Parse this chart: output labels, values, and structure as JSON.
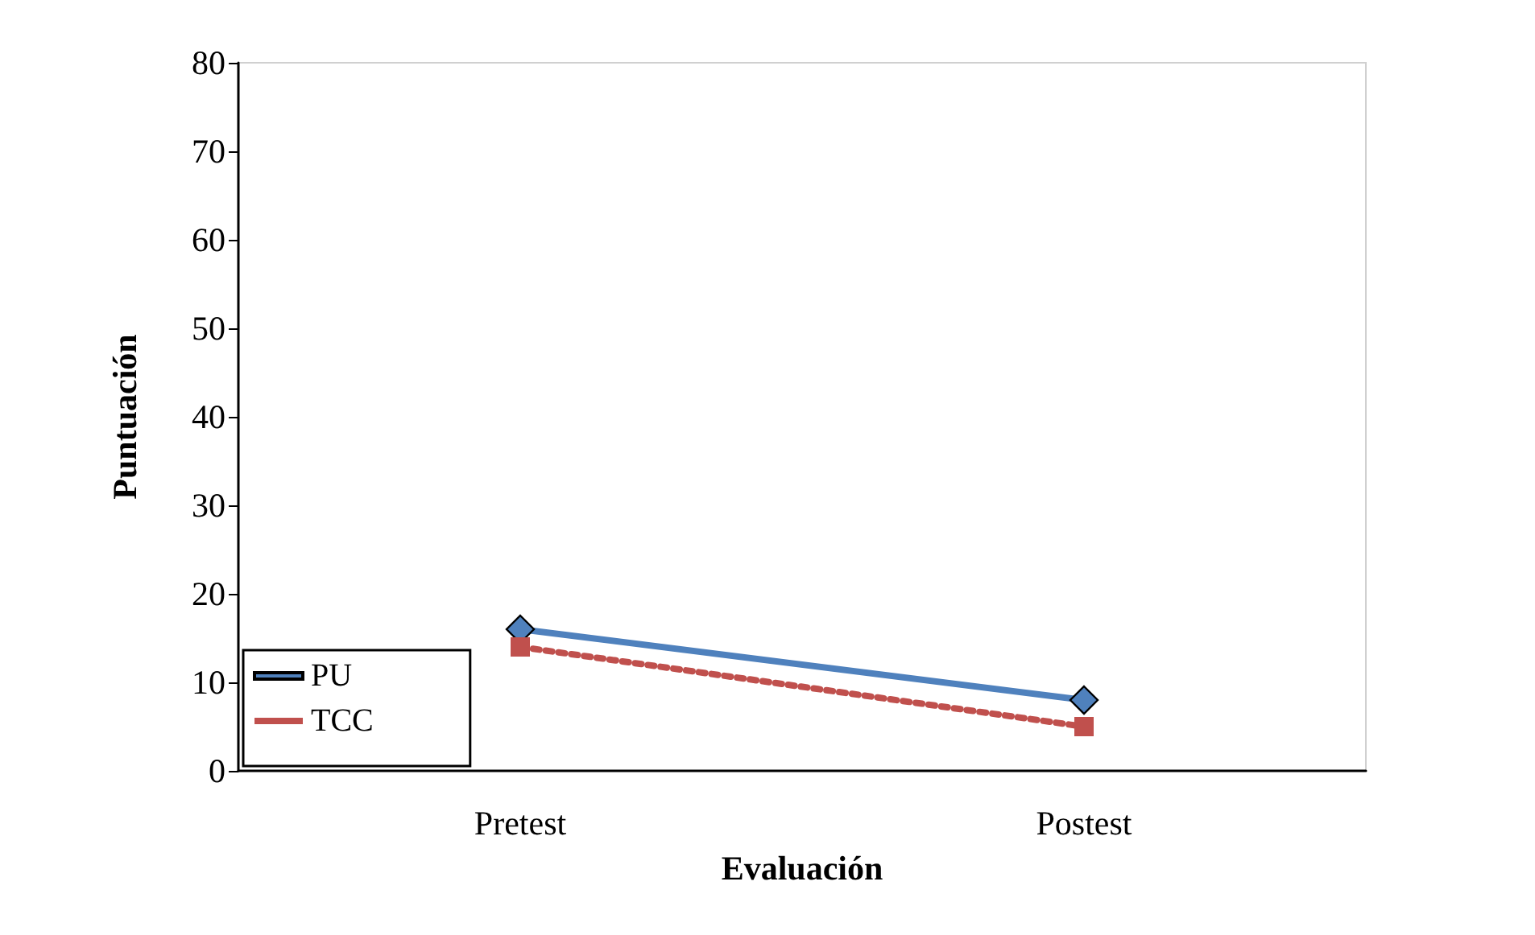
{
  "chart_data": {
    "type": "line",
    "xlabel": "Evaluación",
    "ylabel": "Puntuación",
    "categories": [
      "Pretest",
      "Postest"
    ],
    "series": [
      {
        "name": "PU",
        "color": "#4f81bd",
        "values": [
          16,
          8
        ],
        "marker": "diamond",
        "line_style": "solid"
      },
      {
        "name": "TCC",
        "color": "#c0504d",
        "values": [
          14,
          5
        ],
        "marker": "square",
        "line_style": "dotted"
      }
    ],
    "ylim": [
      0,
      80
    ],
    "yticks": [
      0,
      10,
      20,
      30,
      40,
      50,
      60,
      70,
      80
    ],
    "grid": false,
    "legend": "bottom left"
  }
}
